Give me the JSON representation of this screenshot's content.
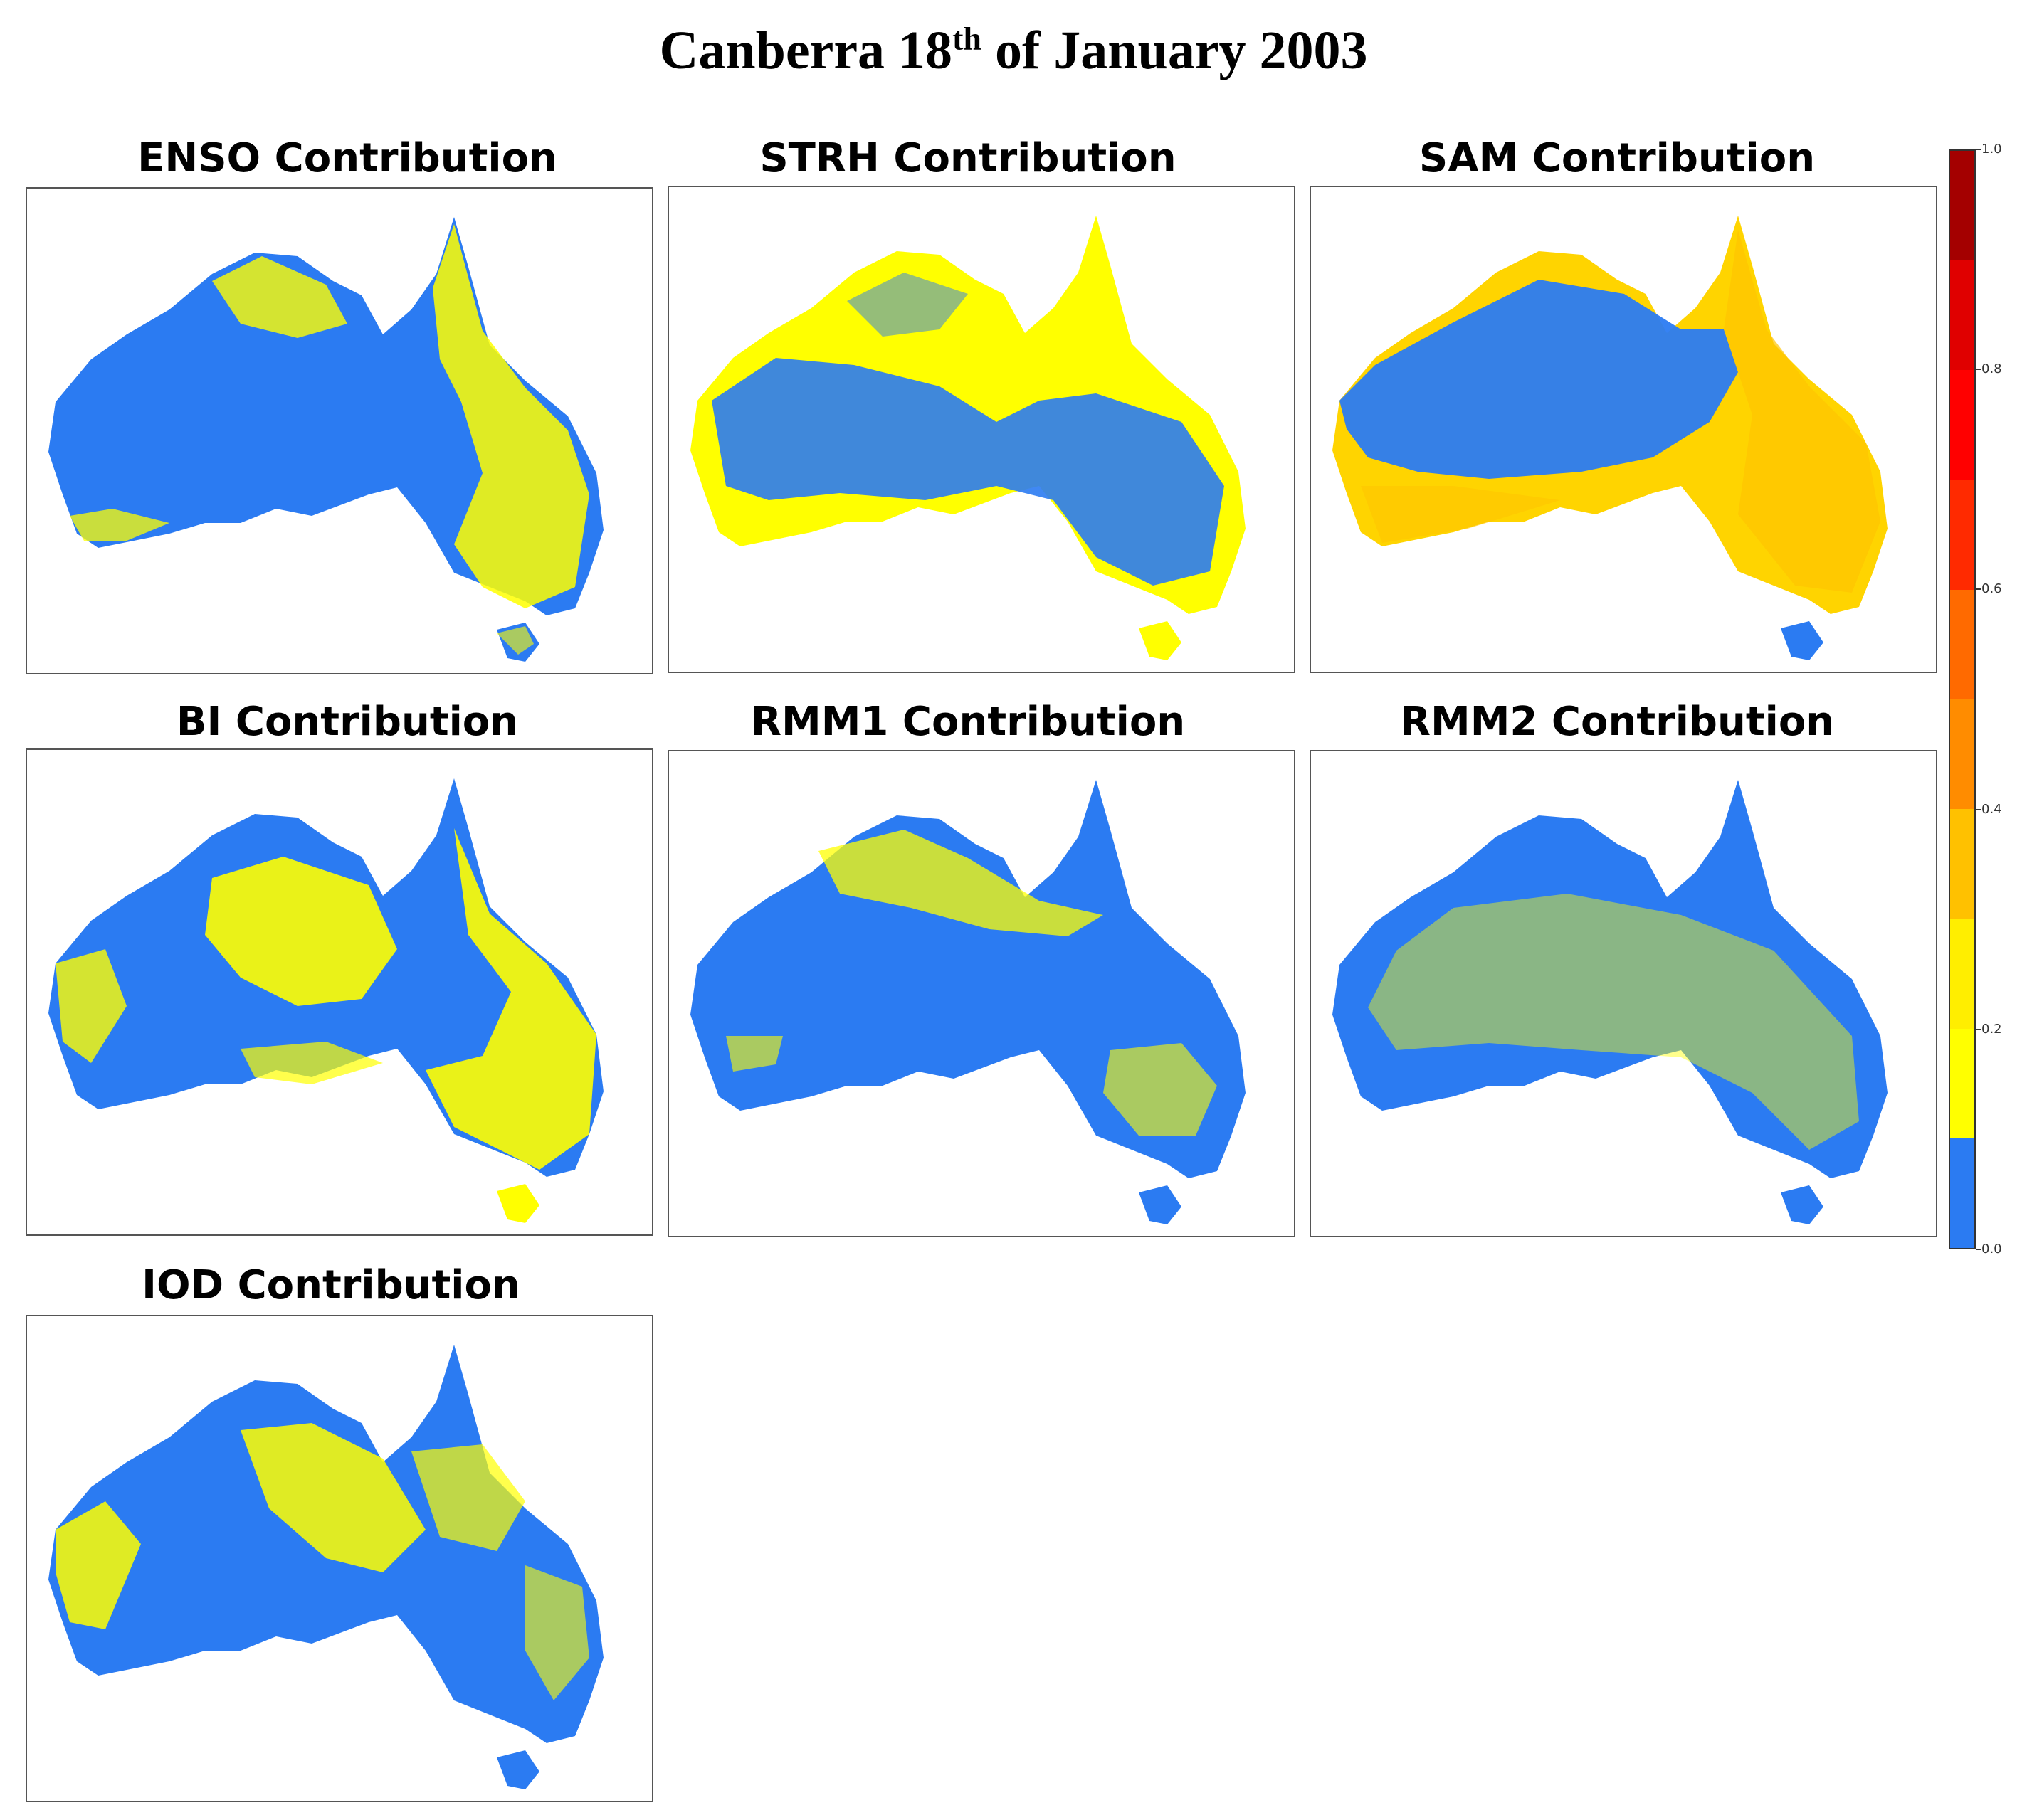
{
  "title": {
    "main": "Canberra 18",
    "sup": "th",
    "rest": " of January 2003"
  },
  "panels": [
    {
      "title": "ENSO Contribution"
    },
    {
      "title": "STRH Contribution"
    },
    {
      "title": "SAM Contribution"
    },
    {
      "title": "BI Contribution"
    },
    {
      "title": "RMM1 Contribution"
    },
    {
      "title": "RMM2 Contribution"
    },
    {
      "title": "IOD Contribution"
    }
  ],
  "legend": {
    "ticks": [
      "0.0",
      "0.2",
      "0.4",
      "0.6",
      "0.8",
      "1.0"
    ],
    "bands": [
      {
        "from": 0.0,
        "to": 0.1,
        "color": "#2b7bf2"
      },
      {
        "from": 0.1,
        "to": 0.2,
        "color": "#ffff00"
      },
      {
        "from": 0.2,
        "to": 0.3,
        "color": "#ffee00"
      },
      {
        "from": 0.3,
        "to": 0.4,
        "color": "#ffc100"
      },
      {
        "from": 0.4,
        "to": 0.5,
        "color": "#ff8c00"
      },
      {
        "from": 0.5,
        "to": 0.6,
        "color": "#ff6a00"
      },
      {
        "from": 0.6,
        "to": 0.7,
        "color": "#ff2a00"
      },
      {
        "from": 0.7,
        "to": 0.8,
        "color": "#ff0000"
      },
      {
        "from": 0.8,
        "to": 0.9,
        "color": "#e00000"
      },
      {
        "from": 0.9,
        "to": 1.0,
        "color": "#a40000"
      }
    ]
  },
  "colors": {
    "low": "#2b7bf2",
    "mid": "#ffff00",
    "high": "#ffc400"
  }
}
